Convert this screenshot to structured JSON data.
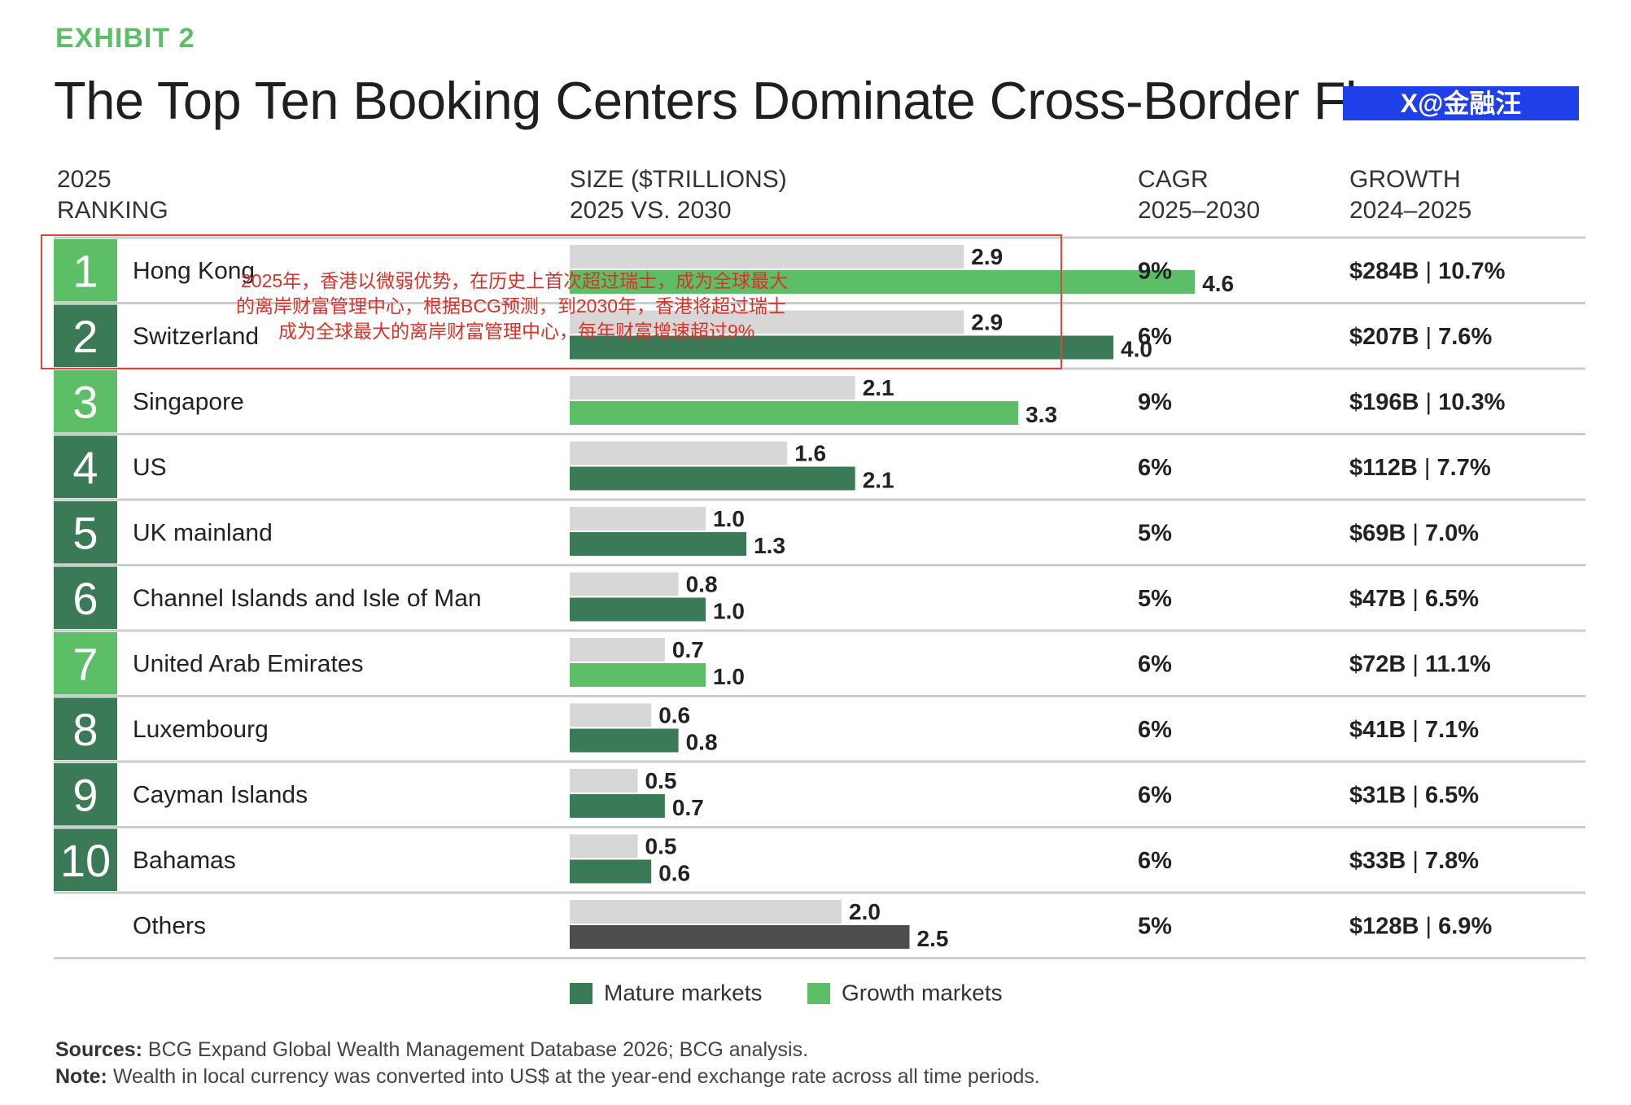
{
  "exhibit_label": "EXHIBIT 2",
  "title": "The Top Ten Booking Centers Dominate Cross-Border Flows",
  "watermark": "X@金融汪",
  "headers": {
    "ranking": [
      "2025",
      "RANKING"
    ],
    "size": [
      "SIZE ($TRILLIONS)",
      "2025 VS. 2030"
    ],
    "cagr": [
      "CAGR",
      "2025–2030"
    ],
    "growth": [
      "GROWTH",
      "2024–2025"
    ]
  },
  "colors": {
    "mature": "#3b7a57",
    "growth": "#5cbf67",
    "bar2025": "#d7d7d7",
    "others2030": "#4d4d4d",
    "rule": "#cccccc"
  },
  "chart_data": {
    "type": "bar",
    "orientation": "horizontal",
    "unit": "$ trillions",
    "series_labels": [
      "2025",
      "2030"
    ],
    "rows": [
      {
        "rank": "1",
        "name": "Hong Kong",
        "v2025": 2.9,
        "v2030": 4.6,
        "l2025": "2.9",
        "l2030": "4.6",
        "market": "growth",
        "cagr": "9%",
        "growth_amt": "$284B",
        "growth_pct": "10.7%"
      },
      {
        "rank": "2",
        "name": "Switzerland",
        "v2025": 2.9,
        "v2030": 4.0,
        "l2025": "2.9",
        "l2030": "4.0",
        "market": "mature",
        "cagr": "6%",
        "growth_amt": "$207B",
        "growth_pct": "7.6%"
      },
      {
        "rank": "3",
        "name": "Singapore",
        "v2025": 2.1,
        "v2030": 3.3,
        "l2025": "2.1",
        "l2030": "3.3",
        "market": "growth",
        "cagr": "9%",
        "growth_amt": "$196B",
        "growth_pct": "10.3%"
      },
      {
        "rank": "4",
        "name": "US",
        "v2025": 1.6,
        "v2030": 2.1,
        "l2025": "1.6",
        "l2030": "2.1",
        "market": "mature",
        "cagr": "6%",
        "growth_amt": "$112B",
        "growth_pct": "7.7%"
      },
      {
        "rank": "5",
        "name": "UK mainland",
        "v2025": 1.0,
        "v2030": 1.3,
        "l2025": "1.0",
        "l2030": "1.3",
        "market": "mature",
        "cagr": "5%",
        "growth_amt": "$69B",
        "growth_pct": "7.0%"
      },
      {
        "rank": "6",
        "name": "Channel Islands and Isle of Man",
        "v2025": 0.8,
        "v2030": 1.0,
        "l2025": "0.8",
        "l2030": "1.0",
        "market": "mature",
        "cagr": "5%",
        "growth_amt": "$47B",
        "growth_pct": "6.5%"
      },
      {
        "rank": "7",
        "name": "United Arab Emirates",
        "v2025": 0.7,
        "v2030": 1.0,
        "l2025": "0.7",
        "l2030": "1.0",
        "market": "growth",
        "cagr": "6%",
        "growth_amt": "$72B",
        "growth_pct": "11.1%"
      },
      {
        "rank": "8",
        "name": "Luxembourg",
        "v2025": 0.6,
        "v2030": 0.8,
        "l2025": "0.6",
        "l2030": "0.8",
        "market": "mature",
        "cagr": "6%",
        "growth_amt": "$41B",
        "growth_pct": "7.1%"
      },
      {
        "rank": "9",
        "name": "Cayman Islands",
        "v2025": 0.5,
        "v2030": 0.7,
        "l2025": "0.5",
        "l2030": "0.7",
        "market": "mature",
        "cagr": "6%",
        "growth_amt": "$31B",
        "growth_pct": "6.5%"
      },
      {
        "rank": "10",
        "name": "Bahamas",
        "v2025": 0.5,
        "v2030": 0.6,
        "l2025": "0.5",
        "l2030": "0.6",
        "market": "mature",
        "cagr": "6%",
        "growth_amt": "$33B",
        "growth_pct": "7.8%"
      },
      {
        "rank": "",
        "name": "Others",
        "v2025": 2.0,
        "v2030": 2.5,
        "l2025": "2.0",
        "l2030": "2.5",
        "market": "others",
        "cagr": "5%",
        "growth_amt": "$128B",
        "growth_pct": "6.9%"
      }
    ]
  },
  "legend": {
    "mature": "Mature markets",
    "growth": "Growth markets"
  },
  "notes": {
    "sources_label": "Sources:",
    "sources_text": " BCG Expand Global Wealth Management Database 2026; BCG analysis.",
    "note_label": "Note:",
    "note_text": " Wealth in local currency was converted into US$ at the year-end exchange rate across all time periods."
  },
  "annotation": {
    "line1": "2025年，香港以微弱优势，在历史上首次超过瑞士，成为全球最大",
    "line2": "的离岸财富管理中心，根据BCG预测，到2030年，香港将超过瑞士",
    "line3": "成为全球最大的离岸财富管理中心，每年财富增速超过9%"
  }
}
